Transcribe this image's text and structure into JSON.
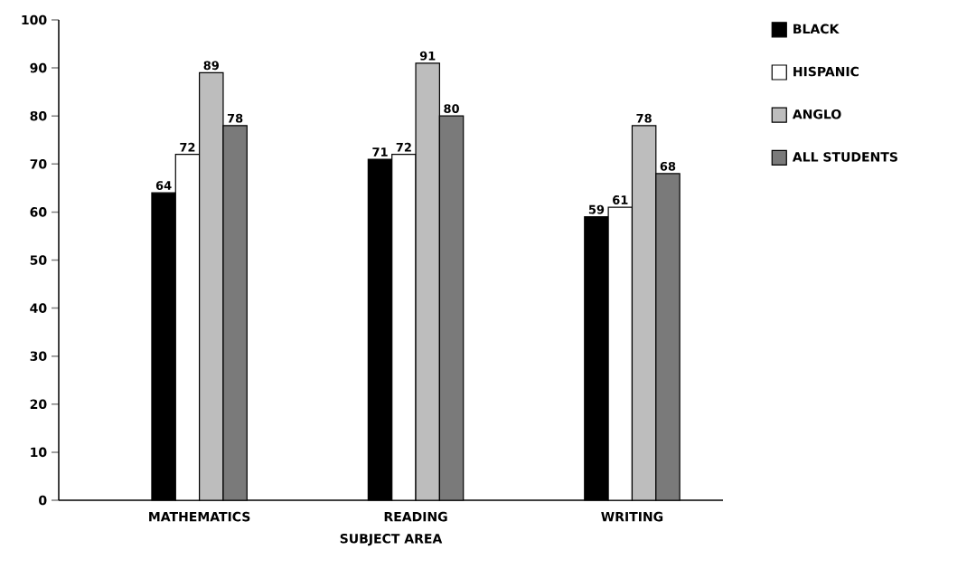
{
  "chart_data": {
    "type": "bar",
    "xlabel": "SUBJECT AREA",
    "categories": [
      "MATHEMATICS",
      "READING",
      "WRITING"
    ],
    "series": [
      {
        "name": "BLACK",
        "color": "#000000",
        "values": [
          64,
          71,
          59
        ]
      },
      {
        "name": "HISPANIC",
        "color": "#ffffff",
        "values": [
          72,
          72,
          61
        ]
      },
      {
        "name": "ANGLO",
        "color": "#bdbdbd",
        "values": [
          89,
          91,
          78
        ]
      },
      {
        "name": "ALL STUDENTS",
        "color": "#7a7a7a",
        "values": [
          78,
          80,
          68
        ]
      }
    ],
    "ylim": [
      0,
      100
    ],
    "yticks": [
      0,
      10,
      20,
      30,
      40,
      50,
      60,
      70,
      80,
      90,
      100
    ],
    "data_labels": true,
    "legend": "top right",
    "grid": false
  }
}
